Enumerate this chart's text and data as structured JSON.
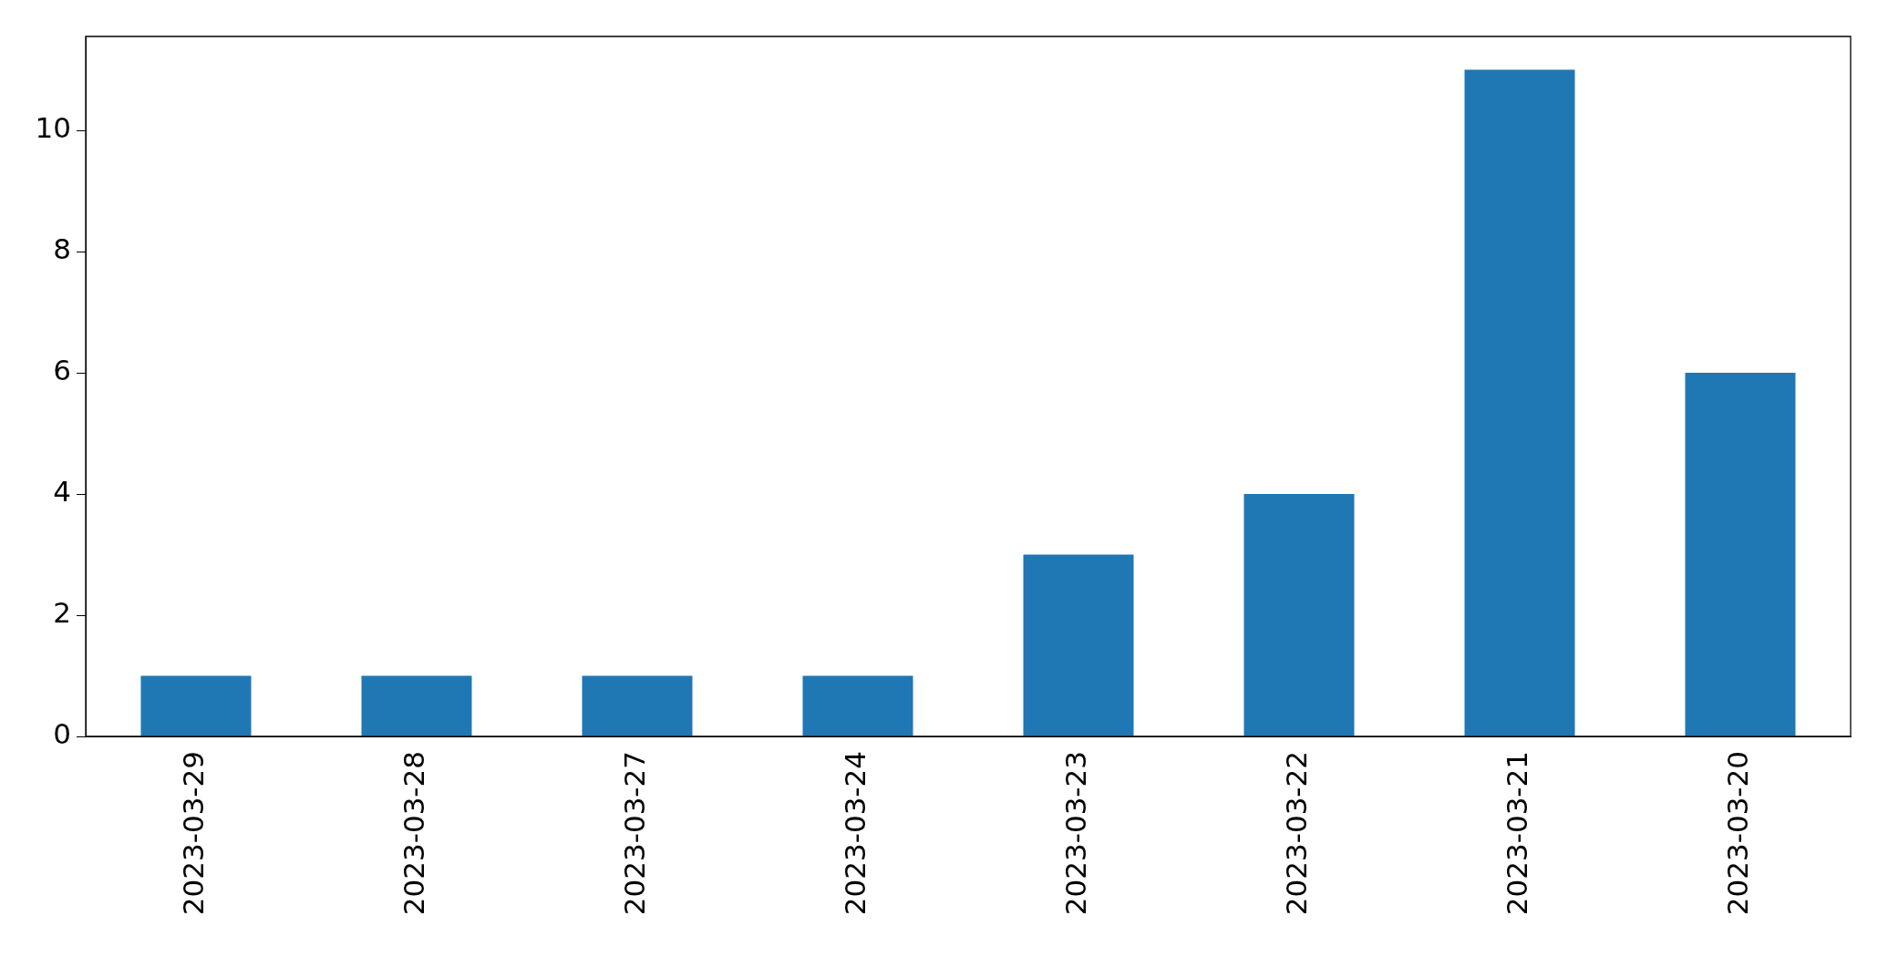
{
  "chart_data": {
    "type": "bar",
    "categories": [
      "2023-03-29",
      "2023-03-28",
      "2023-03-27",
      "2023-03-24",
      "2023-03-23",
      "2023-03-22",
      "2023-03-21",
      "2023-03-20"
    ],
    "values": [
      1,
      1,
      1,
      1,
      3,
      4,
      11,
      6
    ],
    "color": "#1f77b4",
    "ylim": [
      0,
      11.55
    ],
    "yticks": [
      0,
      2,
      4,
      6,
      8,
      10
    ],
    "grid": false,
    "legend": false
  }
}
